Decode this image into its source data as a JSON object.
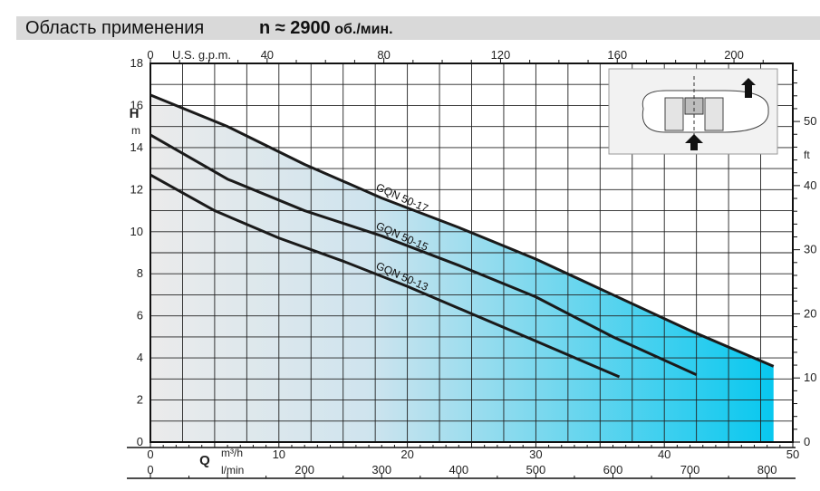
{
  "header": {
    "title": "Область применения",
    "speed": "n ≈ 2900",
    "speed_unit": " об./мин."
  },
  "chart_data": {
    "type": "line",
    "ylabel": "H",
    "ylabel_unit": "m",
    "ylim": [
      0,
      18
    ],
    "yticks": [
      0,
      2,
      4,
      6,
      8,
      10,
      12,
      14,
      16,
      18
    ],
    "y2label": "ft",
    "y2ticks": [
      0,
      10,
      20,
      30,
      40,
      50
    ],
    "xlabel": "Q",
    "xunit_m3h": "m³/h",
    "xunit_lmin": "l/min",
    "xlim": [
      0,
      50
    ],
    "xticks_m3h": [
      0,
      10,
      20,
      30,
      40,
      50
    ],
    "xticks_lmin": [
      0,
      200,
      300,
      400,
      500,
      600,
      700,
      800
    ],
    "top_axis_label": "U.S. g.p.m.",
    "xticks_gpm": [
      0,
      40,
      80,
      120,
      160,
      200
    ],
    "grid": true,
    "series": [
      {
        "name": "GQN 50-17",
        "x": [
          0,
          6,
          12,
          18,
          24,
          30,
          36,
          42,
          48.5
        ],
        "y": [
          16.5,
          15.0,
          13.2,
          11.6,
          10.2,
          8.7,
          7.0,
          5.3,
          3.6
        ]
      },
      {
        "name": "GQN 50-15",
        "x": [
          0,
          6,
          12,
          18,
          24,
          30,
          36,
          42.5
        ],
        "y": [
          14.6,
          12.5,
          11.0,
          9.8,
          8.4,
          6.9,
          5.0,
          3.2
        ]
      },
      {
        "name": "GQN 50-13",
        "x": [
          0,
          5,
          10,
          15,
          20,
          25,
          30,
          36.5
        ],
        "y": [
          12.7,
          11.0,
          9.7,
          8.6,
          7.4,
          6.1,
          4.8,
          3.1
        ]
      }
    ]
  },
  "colors": {
    "fill_light": "#ebebeb",
    "fill_dark": "#08c8ef",
    "curve": "#1a1a1a",
    "header_bg": "#d9d9d9",
    "arrow": "#111111"
  },
  "icons": {
    "pump_diagram": "pump-cross-section-icon"
  }
}
